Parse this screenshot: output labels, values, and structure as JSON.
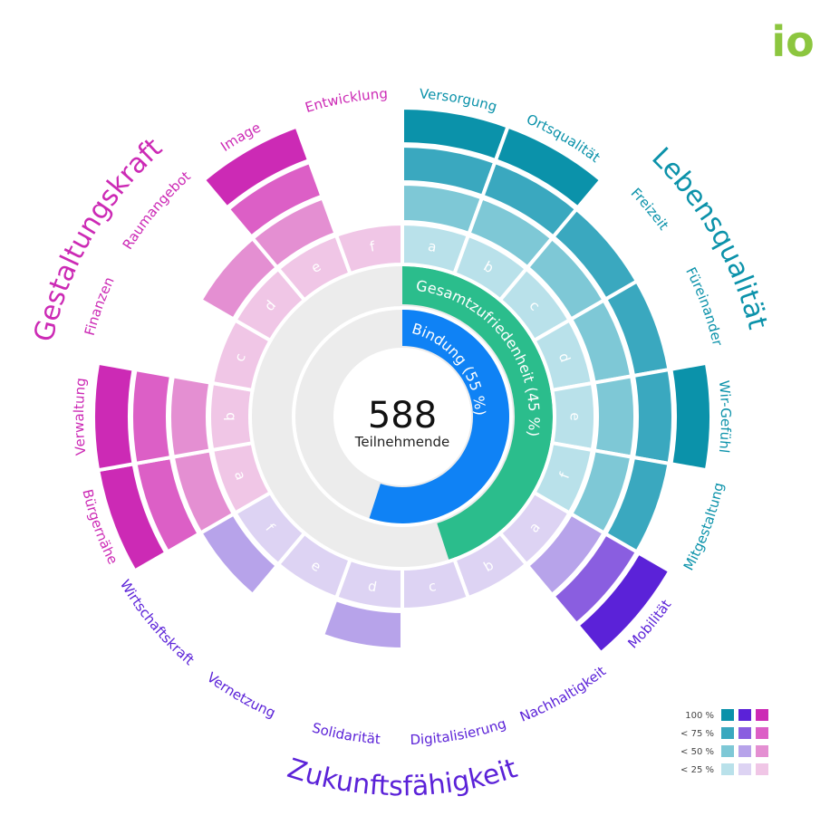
{
  "colors": {
    "Lebensqualität": [
      "#b9e1ea",
      "#7ec8d6",
      "#3aa8bf",
      "#0b92aa"
    ],
    "Zukunftsfähigkeit": [
      "#ddd3f3",
      "#b7a3ea",
      "#8a5ee0",
      "#5b22d8"
    ],
    "Gestaltungskraft": [
      "#f0c6e6",
      "#e48fd2",
      "#dc5fc6",
      "#cc2ab5"
    ],
    "background_ring": "#ececec",
    "gesamt": "#2bbd8c",
    "bindung": "#0f82f5",
    "logo": "#8cc63f"
  },
  "logo": {
    "text": "io"
  },
  "center": {
    "value": "588",
    "label": "Teilnehmende"
  },
  "legend": {
    "rows": [
      "100 %",
      "< 75 %",
      "< 50 %",
      "< 25 %"
    ]
  },
  "chart_data": {
    "type": "radial-bar",
    "center_value": 588,
    "center_label": "Teilnehmende",
    "rings": [
      {
        "name": "Bindung (55 %)",
        "value": 55,
        "color": "#0f82f5"
      },
      {
        "name": "Gesamtzufriedenheit (45 %)",
        "value": 45,
        "color": "#2bbd8c"
      }
    ],
    "levels": [
      "< 25 %",
      "< 50 %",
      "< 75 %",
      "100 %"
    ],
    "groups": [
      {
        "name": "Lebensqualität",
        "categories": [
          {
            "name": "Versorgung",
            "sub": "a",
            "level": 4
          },
          {
            "name": "Ortsqualität",
            "sub": "b",
            "level": 4
          },
          {
            "name": "Freizeit",
            "sub": "c",
            "level": 3
          },
          {
            "name": "Füreinander",
            "sub": "d",
            "level": 3
          },
          {
            "name": "Wir-Gefühl",
            "sub": "e",
            "level": 4
          },
          {
            "name": "Mitgestaltung",
            "sub": "f",
            "level": 3
          }
        ]
      },
      {
        "name": "Zukunftsfähigkeit",
        "categories": [
          {
            "name": "Mobilität",
            "sub": "a",
            "level": 4
          },
          {
            "name": "Nachhaltigkeit",
            "sub": "b",
            "level": 1
          },
          {
            "name": "Digitalisierung",
            "sub": "c",
            "level": 1
          },
          {
            "name": "Solidarität",
            "sub": "d",
            "level": 2
          },
          {
            "name": "Vernetzung",
            "sub": "e",
            "level": 1
          },
          {
            "name": "Wirtschaftskraft",
            "sub": "f",
            "level": 2
          }
        ]
      },
      {
        "name": "Gestaltungskraft",
        "categories": [
          {
            "name": "Bürgernähe",
            "sub": "a",
            "level": 4
          },
          {
            "name": "Verwaltung",
            "sub": "b",
            "level": 4
          },
          {
            "name": "Finanzen",
            "sub": "c",
            "level": 1
          },
          {
            "name": "Raumangebot",
            "sub": "d",
            "level": 2
          },
          {
            "name": "Image",
            "sub": "e",
            "level": 4
          },
          {
            "name": "Entwicklung",
            "sub": "f",
            "level": 1
          }
        ]
      }
    ]
  }
}
